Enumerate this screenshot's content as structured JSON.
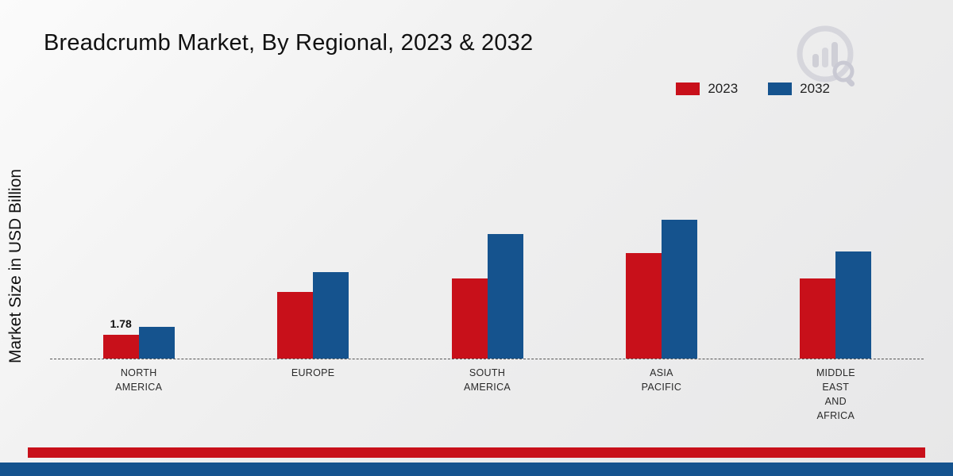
{
  "title": "Breadcrumb Market, By Regional, 2023 & 2032",
  "ylabel": "Market Size in USD Billion",
  "colors": {
    "red": "#c8101a",
    "blue": "#15538e",
    "watermark_gray": "#d2d2da"
  },
  "chart_data": {
    "type": "bar",
    "title": "Breadcrumb Market, By Regional, 2023 & 2032",
    "xlabel": "",
    "ylabel": "Market Size in USD Billion",
    "categories": [
      "NORTH AMERICA",
      "EUROPE",
      "SOUTH AMERICA",
      "ASIA PACIFIC",
      "MIDDLE EAST AND AFRICA"
    ],
    "series": [
      {
        "name": "2023",
        "color": "#c8101a",
        "values": [
          1.78,
          5.0,
          6.0,
          7.9,
          6.0
        ]
      },
      {
        "name": "2032",
        "color": "#15538e",
        "values": [
          2.4,
          6.5,
          9.3,
          10.4,
          8.0
        ]
      }
    ],
    "value_labels": [
      {
        "series_index": 0,
        "category_index": 0,
        "text": "1.78"
      }
    ],
    "ylim": [
      0,
      12
    ],
    "grid": false,
    "legend_position": "top-right",
    "baseline_style": "dashed"
  }
}
